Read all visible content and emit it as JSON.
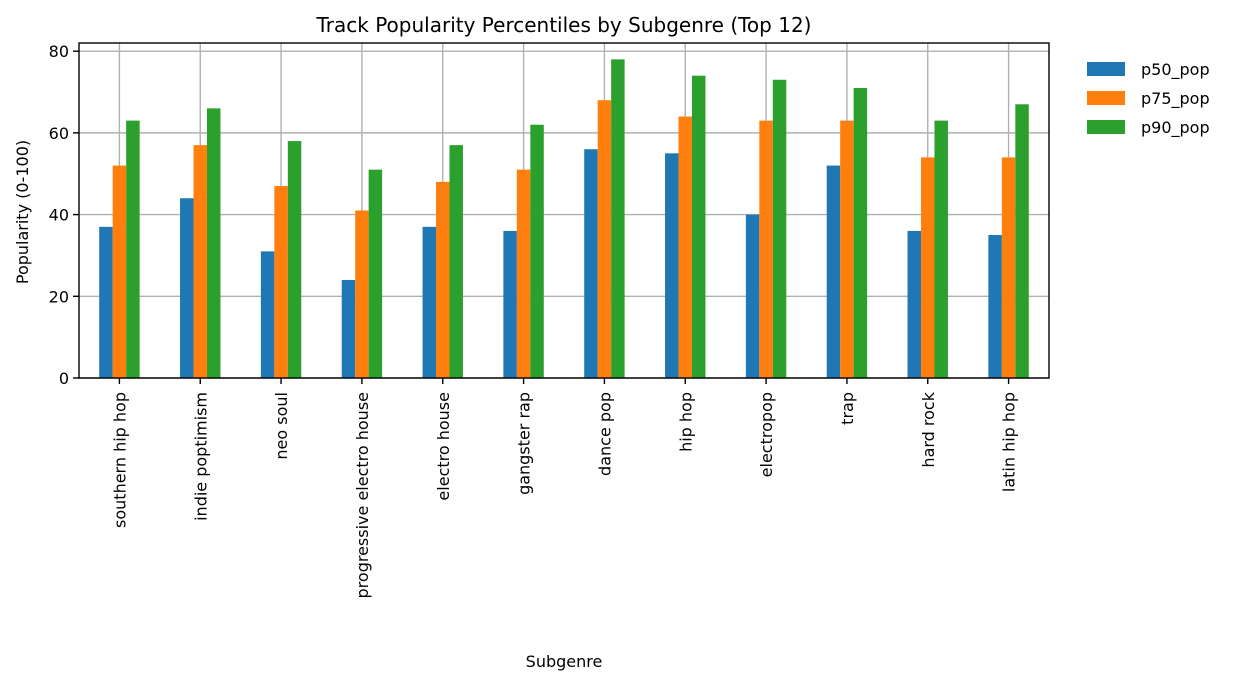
{
  "chart_data": {
    "type": "bar",
    "title": "Track Popularity Percentiles by Subgenre (Top 12)",
    "xlabel": "Subgenre",
    "ylabel": "Popularity (0-100)",
    "ylim": [
      0,
      82
    ],
    "yticks": [
      0,
      20,
      40,
      60,
      80
    ],
    "grid": true,
    "legend_position": "outside top-right",
    "categories": [
      "southern hip hop",
      "indie poptimism",
      "neo soul",
      "progressive electro house",
      "electro house",
      "gangster rap",
      "dance pop",
      "hip hop",
      "electropop",
      "trap",
      "hard rock",
      "latin hip hop"
    ],
    "series": [
      {
        "name": "p50_pop",
        "color": "#1f77b4",
        "values": [
          37,
          44,
          31,
          24,
          37,
          36,
          56,
          55,
          40,
          52,
          36,
          35
        ]
      },
      {
        "name": "p75_pop",
        "color": "#ff7f0e",
        "values": [
          52,
          57,
          47,
          41,
          48,
          51,
          68,
          64,
          63,
          63,
          54,
          54
        ]
      },
      {
        "name": "p90_pop",
        "color": "#2ca02c",
        "values": [
          63,
          66,
          58,
          51,
          57,
          62,
          78,
          74,
          73,
          71,
          63,
          67
        ]
      }
    ]
  }
}
